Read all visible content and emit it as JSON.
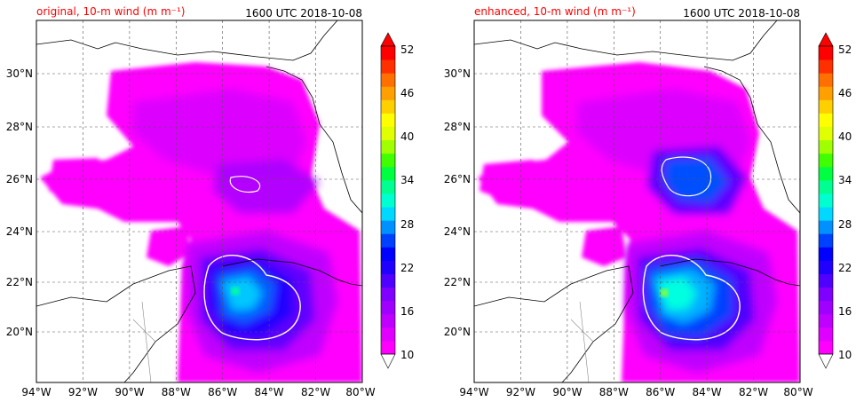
{
  "panels": [
    {
      "id": "original",
      "title_left": "original, 10-m wind (m m⁻¹)",
      "title_right": "1600 UTC 2018-10-08"
    },
    {
      "id": "enhanced",
      "title_left": "enhanced, 10-m wind (m m⁻¹)",
      "title_right": "1600 UTC 2018-10-08"
    }
  ],
  "axes": {
    "lon_ticks": [
      "94°W",
      "92°W",
      "90°W",
      "88°W",
      "86°W",
      "84°W",
      "82°W",
      "80°W"
    ],
    "lat_ticks": [
      "30°N",
      "28°N",
      "26°N",
      "24°N",
      "22°N",
      "20°N"
    ],
    "lon_range": [
      -94,
      -80
    ],
    "lat_range": [
      18,
      32
    ]
  },
  "colorbar": {
    "ticks": [
      "52",
      "46",
      "40",
      "34",
      "28",
      "22",
      "16",
      "10"
    ],
    "levels": [
      10,
      52
    ],
    "extend": "both",
    "colors": [
      "#ff00ff",
      "#e000ff",
      "#c000ff",
      "#a000ff",
      "#8000ff",
      "#5000ff",
      "#2000ff",
      "#0000ff",
      "#0040ff",
      "#0090ff",
      "#00d8ff",
      "#00ffd0",
      "#00ff90",
      "#00ff40",
      "#40ff00",
      "#a0ff00",
      "#e0ff00",
      "#ffff00",
      "#ffd000",
      "#ffa000",
      "#ff7000",
      "#ff3000",
      "#ff0000"
    ]
  },
  "chart_data": [
    {
      "type": "heatmap",
      "title": "original, 10-m wind (m m⁻¹)",
      "subtitle": "1600 UTC 2018-10-08",
      "x_range": [
        -94,
        -80
      ],
      "y_range": [
        18,
        32
      ],
      "colorbar_range": [
        10,
        52
      ],
      "grid": true,
      "storm_center": {
        "lon": -85.5,
        "lat": 21.5
      }
    },
    {
      "type": "heatmap",
      "title": "enhanced, 10-m wind (m m⁻¹)",
      "subtitle": "1600 UTC 2018-10-08",
      "x_range": [
        -94,
        -80
      ],
      "y_range": [
        18,
        32
      ],
      "colorbar_range": [
        10,
        52
      ],
      "grid": true,
      "storm_center": {
        "lon": -85.8,
        "lat": 21.5
      }
    }
  ]
}
